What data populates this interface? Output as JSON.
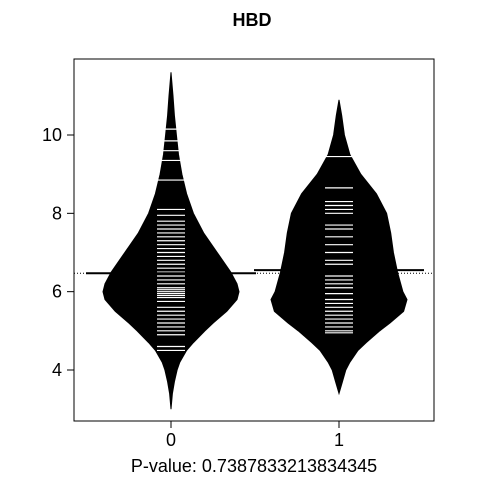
{
  "chart_data": {
    "type": "beanplot",
    "title": "HBD",
    "xlabel": "P-value: 0.7387833213834345",
    "ylabel": "",
    "categories": [
      "0",
      "1"
    ],
    "ylim": [
      2.9,
      11.7
    ],
    "y_ticks": [
      4,
      6,
      8,
      10
    ],
    "overall_mean": 6.47,
    "grid": false,
    "series": [
      {
        "category": "0",
        "mean": 6.47,
        "density_max": 11.6,
        "density_min": 3.0,
        "density_profile": [
          [
            11.6,
            0.0
          ],
          [
            11.0,
            0.03
          ],
          [
            10.5,
            0.05
          ],
          [
            10.0,
            0.08
          ],
          [
            9.5,
            0.11
          ],
          [
            9.0,
            0.16
          ],
          [
            8.5,
            0.23
          ],
          [
            8.0,
            0.33
          ],
          [
            7.5,
            0.48
          ],
          [
            7.0,
            0.68
          ],
          [
            6.5,
            0.88
          ],
          [
            6.2,
            0.97
          ],
          [
            6.0,
            1.0
          ],
          [
            5.8,
            0.97
          ],
          [
            5.5,
            0.82
          ],
          [
            5.2,
            0.62
          ],
          [
            5.0,
            0.5
          ],
          [
            4.7,
            0.33
          ],
          [
            4.5,
            0.23
          ],
          [
            4.2,
            0.13
          ],
          [
            4.0,
            0.09
          ],
          [
            3.7,
            0.05
          ],
          [
            3.4,
            0.02
          ],
          [
            3.0,
            0.0
          ]
        ],
        "observations": [
          10.15,
          9.85,
          9.6,
          9.35,
          8.85,
          8.1,
          7.95,
          7.8,
          7.7,
          7.6,
          7.5,
          7.4,
          7.3,
          7.2,
          7.1,
          7.0,
          6.9,
          6.8,
          6.7,
          6.6,
          6.5,
          6.4,
          6.3,
          6.2,
          6.1,
          6.05,
          6.0,
          5.95,
          5.9,
          5.85,
          5.75,
          5.6,
          5.5,
          5.4,
          5.3,
          5.2,
          5.1,
          5.0,
          4.9,
          4.6,
          4.5
        ]
      },
      {
        "category": "1",
        "mean": 6.55,
        "density_max": 10.9,
        "density_min": 3.4,
        "density_profile": [
          [
            10.9,
            0.0
          ],
          [
            10.5,
            0.04
          ],
          [
            10.0,
            0.08
          ],
          [
            9.5,
            0.16
          ],
          [
            9.0,
            0.32
          ],
          [
            8.5,
            0.55
          ],
          [
            8.0,
            0.7
          ],
          [
            7.5,
            0.76
          ],
          [
            7.0,
            0.8
          ],
          [
            6.5,
            0.86
          ],
          [
            6.0,
            0.94
          ],
          [
            5.8,
            1.0
          ],
          [
            5.5,
            0.95
          ],
          [
            5.2,
            0.75
          ],
          [
            5.0,
            0.6
          ],
          [
            4.7,
            0.4
          ],
          [
            4.5,
            0.28
          ],
          [
            4.2,
            0.16
          ],
          [
            4.0,
            0.1
          ],
          [
            3.7,
            0.05
          ],
          [
            3.4,
            0.0
          ]
        ],
        "observations": [
          9.45,
          8.65,
          8.3,
          8.2,
          8.1,
          8.0,
          7.7,
          7.6,
          7.4,
          7.2,
          7.0,
          6.8,
          6.7,
          6.55,
          6.4,
          6.3,
          6.2,
          6.1,
          5.95,
          5.8,
          5.7,
          5.6,
          5.5,
          5.4,
          5.3,
          5.2,
          5.1,
          5.0,
          4.95
        ]
      }
    ]
  }
}
